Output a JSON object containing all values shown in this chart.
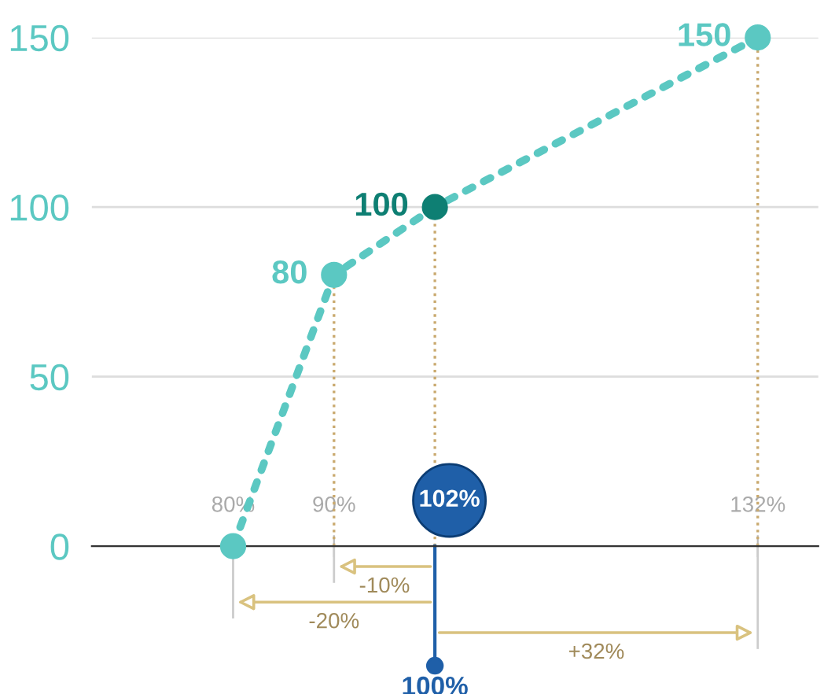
{
  "chart_data": {
    "type": "line",
    "x": [
      80,
      90,
      100,
      132
    ],
    "series": [
      {
        "color": "#5bc8c2",
        "values": [
          0,
          80,
          100,
          150
        ],
        "colors": [
          "#5bc8c2",
          "#5bc8c2",
          "#0e7f73",
          "#5bc8c2"
        ],
        "value_labels": [
          null,
          "80",
          "100",
          "150"
        ]
      }
    ],
    "xlim": [
      66,
      138
    ],
    "ylim": [
      0,
      150
    ],
    "xticks": [
      {
        "value": 80,
        "label": "80%"
      },
      {
        "value": 90,
        "label": "90%"
      },
      {
        "value": 132,
        "label": "132%"
      }
    ],
    "yticks": [
      0,
      50,
      100,
      150
    ],
    "grid": "y",
    "marker": "circle",
    "line_style": "dotted",
    "ref_lines": [
      {
        "axis": "x",
        "value": 90,
        "color": "#c9a96e",
        "line_style": "dotted"
      },
      {
        "axis": "x",
        "value": 100,
        "color": "#c9a96e",
        "line_style": "dotted"
      },
      {
        "axis": "x",
        "value": 132,
        "color": "#c9a96e",
        "line_style": "dotted"
      },
      {
        "axis": "x",
        "value": 100,
        "label": "100%",
        "color": "#1f5fa8"
      }
    ],
    "annotations": [
      "102%",
      "-10%",
      "-20%",
      "+32%"
    ]
  }
}
